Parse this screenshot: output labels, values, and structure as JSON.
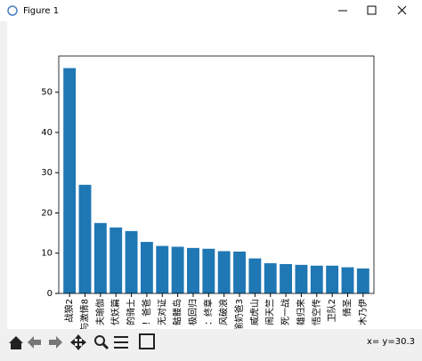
{
  "window": {
    "title": "Figure 1"
  },
  "chart_data": {
    "type": "bar",
    "categories": [
      "战狼2",
      "与激情8",
      "夫瑜伽",
      "伏妖篇",
      "的骑士",
      "！爸爸",
      "无对证",
      "骷髅岛",
      "极回归",
      "：终章",
      "风破浪",
      "偷奶爸3",
      "威虎山",
      "闹天竺",
      "死一战",
      "雄归来",
      "悟空传",
      "卫队2",
      "情圣",
      "木乃伊"
    ],
    "values": [
      56,
      27,
      17.5,
      16.4,
      15.5,
      12.8,
      11.8,
      11.6,
      11.3,
      11.1,
      10.5,
      10.4,
      8.7,
      7.5,
      7.3,
      7.1,
      6.9,
      6.9,
      6.5,
      6.2
    ],
    "color": "#1f77b4",
    "ylim": [
      0,
      59
    ],
    "yticks": [
      0,
      10,
      20,
      30,
      40,
      50
    ],
    "grid": false
  },
  "status": "x= y=30.3"
}
